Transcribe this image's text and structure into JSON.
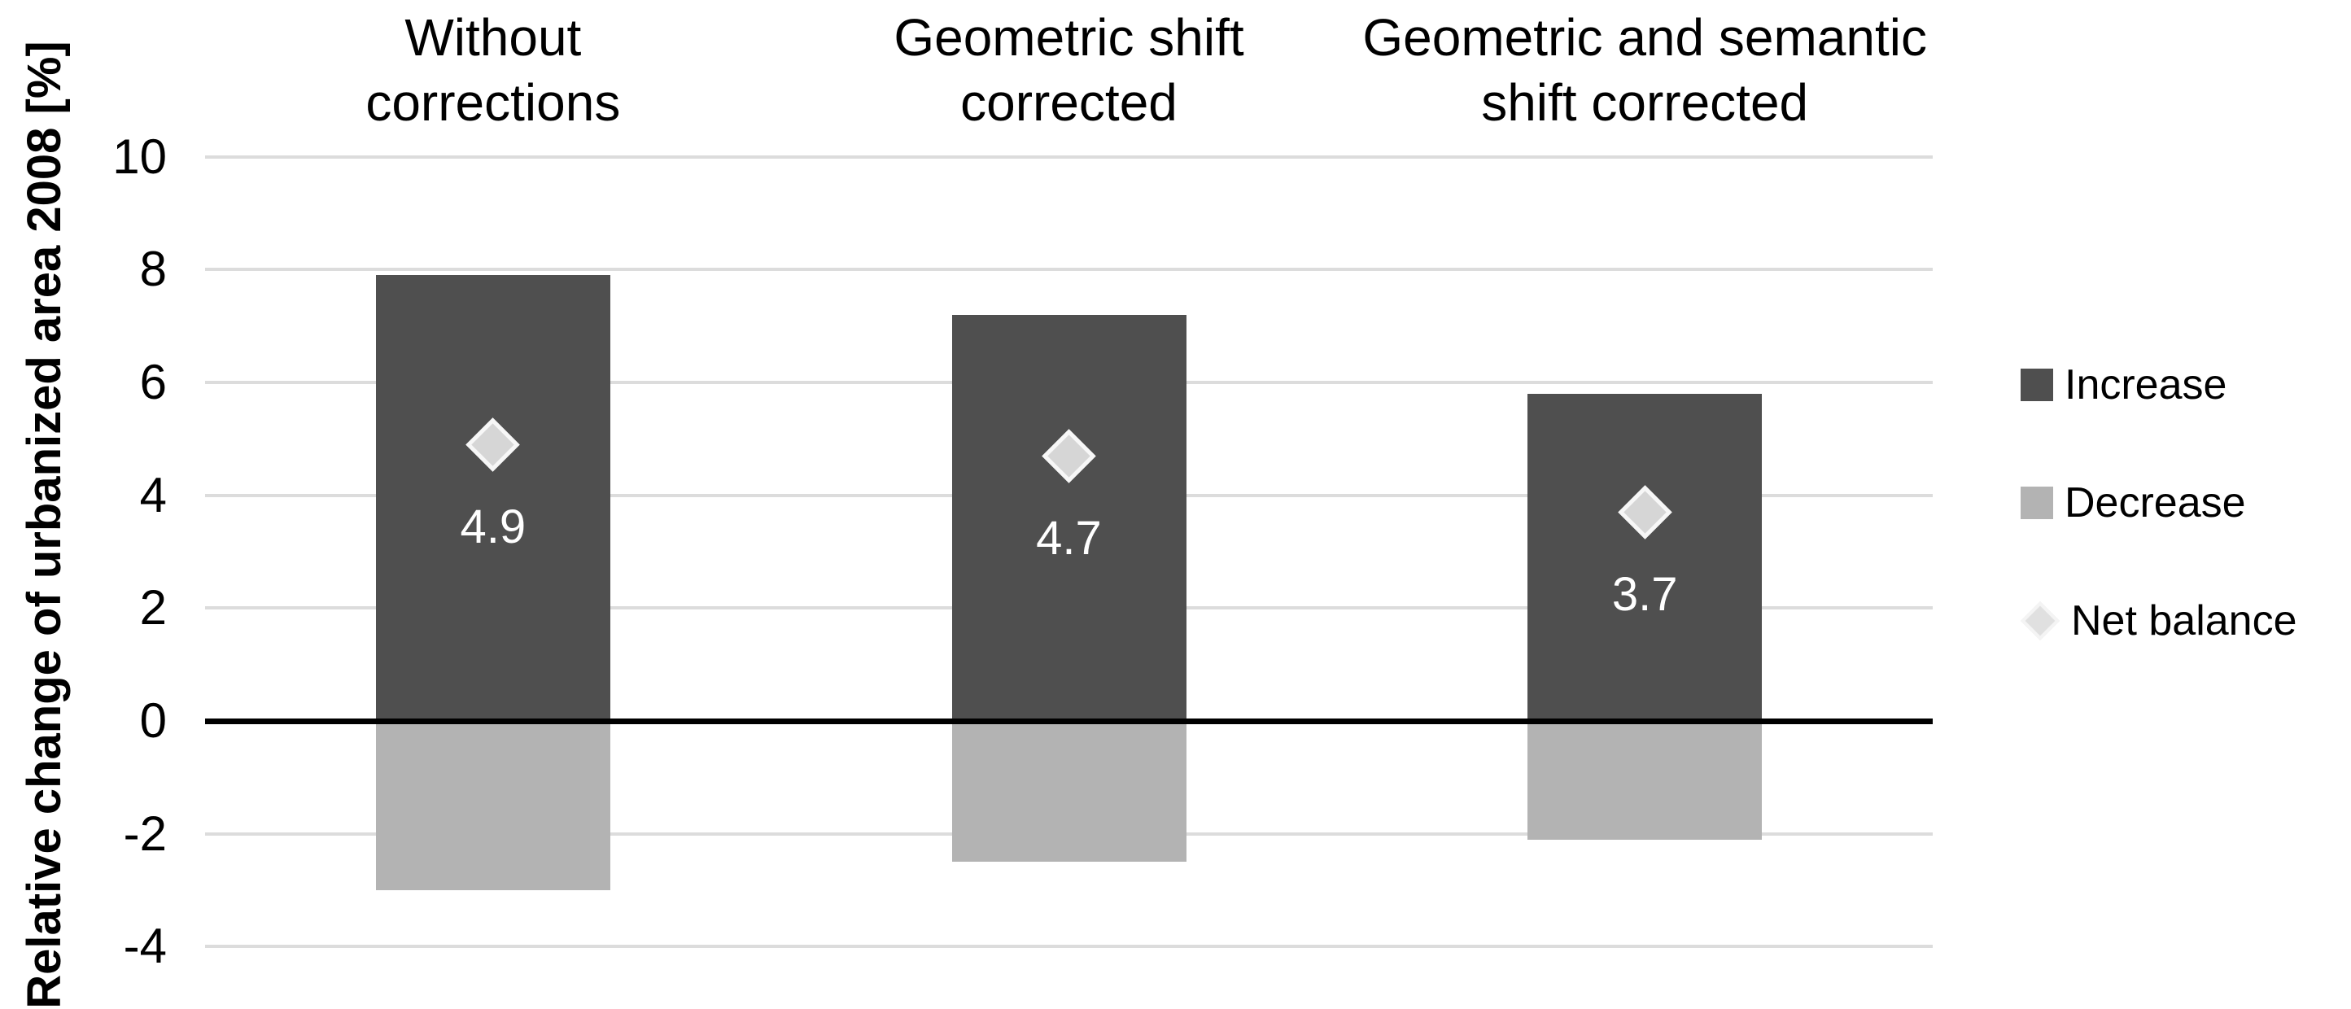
{
  "chart_data": {
    "type": "bar",
    "title": "",
    "categories": [
      "Without\ncorrections",
      "Geometric shift\ncorrected",
      "Geometric and semantic\nshift corrected"
    ],
    "series": [
      {
        "name": "Increase",
        "type": "bar",
        "color": "#4f4f4f",
        "values": [
          7.9,
          7.2,
          5.8
        ]
      },
      {
        "name": "Decrease",
        "type": "bar",
        "color": "#b3b3b3",
        "values": [
          -3.0,
          -2.5,
          -2.1
        ]
      },
      {
        "name": "Net balance",
        "type": "scatter-diamond",
        "fill": "#d6d6d6",
        "border": "#f7f7f7",
        "legend_fill": "#e0e0e0",
        "legend_border": "#f4f4f4",
        "label_color": "#ffffff",
        "values": [
          4.9,
          4.7,
          3.7
        ],
        "labels": [
          "4.9",
          "4.7",
          "3.7"
        ]
      }
    ],
    "ylabel": "Relative change of urbanized area 2008 [%]",
    "yticks": [
      10,
      8,
      6,
      4,
      2,
      0,
      -2,
      -4
    ],
    "ylim": [
      -4,
      10
    ],
    "grid": "horizontal-only",
    "gridline_color": "#dcdcdc",
    "zero_line_color": "#000000",
    "tick_color": "#000000",
    "legend_position": "right",
    "background": "#ffffff"
  }
}
